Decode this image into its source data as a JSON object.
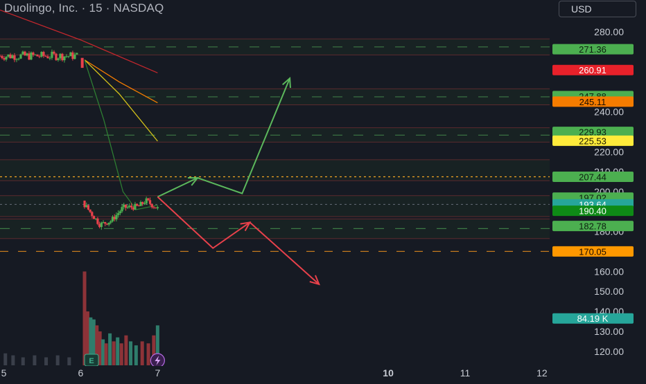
{
  "header": {
    "title": "Duolingo, Inc. · 15 · NASDAQ",
    "currency": "USD"
  },
  "colors": {
    "background": "#161a23",
    "bull": "#4caf50",
    "bear": "#e8414b",
    "zone_fill": "#1c2a25",
    "dashed_green": "#3d7a45",
    "dotted_orange": "#f5a623"
  },
  "chart_data": {
    "type": "candlestick",
    "y_axis": {
      "range": [
        113,
        296
      ],
      "ticks": [
        {
          "value": 280,
          "label": "280.00"
        },
        {
          "value": 240,
          "label": "240.00"
        },
        {
          "value": 220,
          "label": "220.00"
        },
        {
          "value": 210,
          "label": "210.00"
        },
        {
          "value": 200,
          "label": "200.00"
        },
        {
          "value": 180,
          "label": "180.00"
        },
        {
          "value": 160,
          "label": "160.00"
        },
        {
          "value": 150,
          "label": "150.00"
        },
        {
          "value": 140,
          "label": "140.00"
        },
        {
          "value": 130,
          "label": "130.00"
        },
        {
          "value": 120,
          "label": "120.00"
        }
      ]
    },
    "x_axis": {
      "range": [
        4.95,
        12.1
      ],
      "ticks": [
        {
          "value": 5,
          "label": "5"
        },
        {
          "value": 6,
          "label": "6"
        },
        {
          "value": 7,
          "label": "7"
        },
        {
          "value": 10,
          "label": "10",
          "bold": true
        },
        {
          "value": 11,
          "label": "11"
        },
        {
          "value": 12,
          "label": "12"
        }
      ]
    },
    "price_labels": [
      {
        "value": 271.36,
        "label": "271.36",
        "color": "#4caf50",
        "text_color": "#0d1f10"
      },
      {
        "value": 260.91,
        "label": "260.91",
        "color": "#e8212a",
        "text_color": "#ffffff"
      },
      {
        "value": 247.88,
        "label": "247.88",
        "color": "#4caf50",
        "text_color": "#0d1f10"
      },
      {
        "value": 245.11,
        "label": "245.11",
        "color": "#f57c00",
        "text_color": "#1a0d00"
      },
      {
        "value": 229.93,
        "label": "229.93",
        "color": "#4caf50",
        "text_color": "#0d1f10"
      },
      {
        "value": 225.53,
        "label": "225.53",
        "color": "#ffeb3b",
        "text_color": "#1a1800"
      },
      {
        "value": 207.44,
        "label": "207.44",
        "color": "#4caf50",
        "text_color": "#0d1f10"
      },
      {
        "value": 197.02,
        "label": "197.02",
        "color": "#4caf50",
        "text_color": "#0d1f10"
      },
      {
        "value": 193.64,
        "label": "193.64",
        "color": "#26a69a",
        "text_color": "#ffffff"
      },
      {
        "value": 190.4,
        "label": "190.40",
        "color": "#0e8a16",
        "text_color": "#ffffff"
      },
      {
        "value": 182.78,
        "label": "182.78",
        "color": "#4caf50",
        "text_color": "#0d1f10"
      },
      {
        "value": 170.05,
        "label": "170.05",
        "color": "#ff9800",
        "text_color": "#1a0d00"
      }
    ],
    "volume_label": {
      "value": 136.5,
      "label": "84.19 K",
      "color": "#26a69a",
      "text_color": "#ffffff"
    },
    "zones": [
      {
        "top": 276.5,
        "bottom": 268.5,
        "dashed": 272.5
      },
      {
        "top": 251.5,
        "bottom": 243.5,
        "dashed": 247.5
      },
      {
        "top": 232,
        "bottom": 224.8,
        "dashed": 228.3
      },
      {
        "top": 216,
        "bottom": 205.5
      },
      {
        "top": 198,
        "bottom": 187.5
      },
      {
        "top": 186.3,
        "bottom": 176.5,
        "dashed": 181.5
      }
    ],
    "levels": [
      {
        "value": 207.44,
        "style": "dotted",
        "color": "#f5a623"
      },
      {
        "value": 193.6,
        "style": "dotted",
        "color": "#5d6470"
      },
      {
        "value": 170.05,
        "style": "dashed",
        "color": "#c47a1e"
      }
    ],
    "moving_averages": [
      {
        "color": "#c2272d",
        "points": [
          [
            4.95,
            291
          ],
          [
            6.0,
            276
          ],
          [
            7.0,
            259.5
          ]
        ]
      },
      {
        "color": "#f57c00",
        "points": [
          [
            6.05,
            266
          ],
          [
            6.5,
            255
          ],
          [
            7.0,
            244.5
          ]
        ]
      },
      {
        "color": "#d4c21a",
        "points": [
          [
            6.05,
            266
          ],
          [
            6.5,
            249
          ],
          [
            7.0,
            225.3
          ]
        ]
      },
      {
        "color": "#2e7d32",
        "points": [
          [
            6.05,
            266
          ],
          [
            6.3,
            236
          ],
          [
            6.55,
            200
          ],
          [
            6.72,
            191
          ],
          [
            7.0,
            193.2
          ]
        ]
      }
    ],
    "scenario_paths": [
      {
        "direction": "bull",
        "color": "#5cb85c",
        "points": [
          [
            7.0,
            197.4
          ],
          [
            7.52,
            206.9
          ],
          [
            8.1,
            199.1
          ],
          [
            8.72,
            256.8
          ]
        ],
        "arrows_at": [
          1,
          3
        ]
      },
      {
        "direction": "bear",
        "color": "#e8414b",
        "points": [
          [
            7.0,
            197.4
          ],
          [
            7.72,
            171.7
          ],
          [
            8.2,
            184.6
          ],
          [
            9.1,
            153.6
          ]
        ],
        "arrows_at": [
          2,
          3
        ]
      }
    ],
    "candles": {
      "segment1": {
        "x_start": 4.95,
        "x_end": 5.95,
        "base": 268.0,
        "amplitude": 2.2
      },
      "segment2": {
        "x_start": 6.05,
        "x_end": 7.0,
        "path": [
          [
            6.05,
            193.5
          ],
          [
            6.25,
            183.5
          ],
          [
            6.4,
            185.5
          ],
          [
            6.55,
            192
          ],
          [
            6.75,
            192.5
          ],
          [
            6.85,
            195.5
          ],
          [
            7.0,
            191.5
          ]
        ]
      }
    },
    "volume": {
      "base_value": 113,
      "bars": [
        {
          "x": 6.05,
          "v": 160
        },
        {
          "x": 6.09,
          "v": 140
        },
        {
          "x": 6.13,
          "v": 137
        },
        {
          "x": 6.17,
          "v": 136
        },
        {
          "x": 6.21,
          "v": 133
        },
        {
          "x": 6.25,
          "v": 130
        },
        {
          "x": 6.29,
          "v": 126
        },
        {
          "x": 6.33,
          "v": 124
        },
        {
          "x": 6.38,
          "v": 129
        },
        {
          "x": 6.43,
          "v": 125
        },
        {
          "x": 6.48,
          "v": 127
        },
        {
          "x": 6.53,
          "v": 124
        },
        {
          "x": 6.59,
          "v": 128
        },
        {
          "x": 6.65,
          "v": 125
        },
        {
          "x": 6.72,
          "v": 123
        },
        {
          "x": 6.8,
          "v": 125
        },
        {
          "x": 6.88,
          "v": 124
        },
        {
          "x": 6.95,
          "v": 128
        },
        {
          "x": 7.0,
          "v": 133
        }
      ],
      "early_bars": [
        {
          "x": 5.02,
          "v": 119
        },
        {
          "x": 5.12,
          "v": 118
        },
        {
          "x": 5.25,
          "v": 117
        },
        {
          "x": 5.4,
          "v": 118
        },
        {
          "x": 5.55,
          "v": 117
        },
        {
          "x": 5.7,
          "v": 118
        },
        {
          "x": 5.85,
          "v": 117
        }
      ]
    },
    "earnings_marker": {
      "x": 6.05,
      "label": "E"
    },
    "flash_marker": {
      "x": 7.0
    }
  }
}
